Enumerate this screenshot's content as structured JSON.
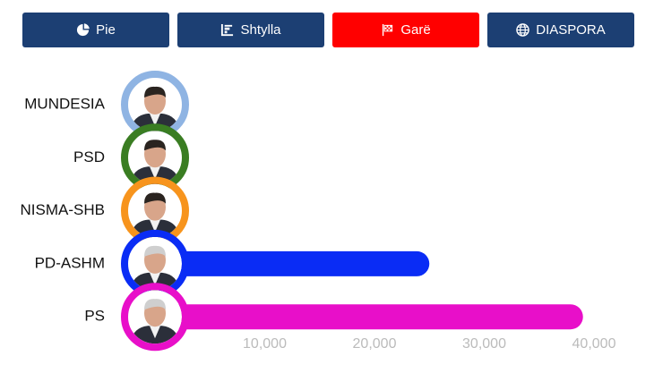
{
  "buttons": [
    {
      "label": "Pie",
      "active": false
    },
    {
      "label": "Shtylla",
      "active": false
    },
    {
      "label": "Garë",
      "active": true
    },
    {
      "label": "DIASPORA",
      "active": false
    }
  ],
  "chart_data": {
    "type": "bar-race",
    "categories": [
      "MUNDESIA",
      "PSD",
      "NISMA-SHB",
      "PD-ASHM",
      "PS"
    ],
    "values": [
      400,
      900,
      1800,
      25000,
      39000
    ],
    "colors": [
      "#8fb4e3",
      "#3a7d22",
      "#f7941d",
      "#0a2cf5",
      "#e80fc9"
    ],
    "xlim": [
      0,
      42000
    ],
    "xticks": [
      0,
      {
        "value": 10000,
        "label": "10,000"
      },
      {
        "value": 20000,
        "label": "20,000"
      },
      {
        "value": 30000,
        "label": "30,000"
      },
      {
        "value": 40000,
        "label": "40,000"
      }
    ]
  }
}
